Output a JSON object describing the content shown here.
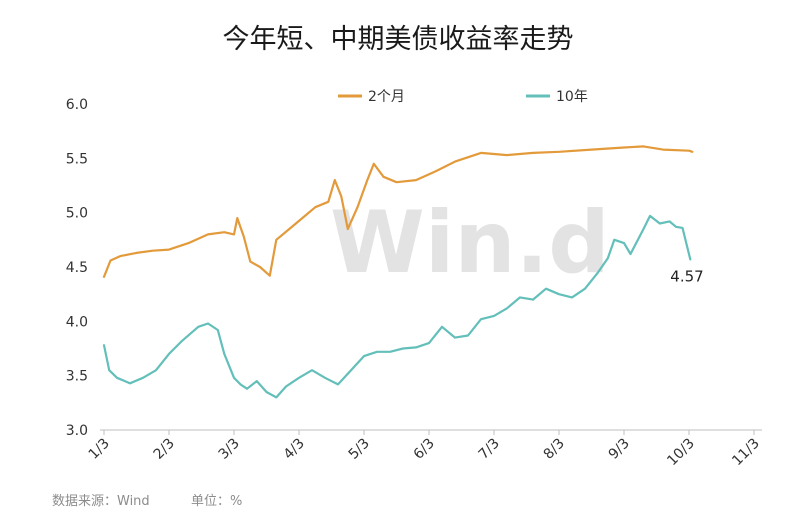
{
  "chart_data": {
    "type": "line",
    "title": "今年短、中期美债收益率走势",
    "xlabel": "",
    "ylabel": "",
    "ylim": [
      3.0,
      6.0
    ],
    "yticks": [
      "6.0",
      "5.5",
      "5.0",
      "4.5",
      "4.0",
      "3.5",
      "3.0"
    ],
    "xticks": [
      "1/3",
      "2/3",
      "3/3",
      "4/3",
      "5/3",
      "6/3",
      "7/3",
      "8/3",
      "9/3",
      "10/3",
      "11/3"
    ],
    "grid": false,
    "legend": "top-center",
    "x_domain": [
      1,
      11
    ],
    "series": [
      {
        "name": "2个月",
        "color": "#e39a3b",
        "points": [
          [
            1.0,
            4.41
          ],
          [
            1.1,
            4.56
          ],
          [
            1.25,
            4.6
          ],
          [
            1.5,
            4.63
          ],
          [
            1.75,
            4.65
          ],
          [
            2.0,
            4.66
          ],
          [
            2.3,
            4.72
          ],
          [
            2.6,
            4.8
          ],
          [
            2.85,
            4.82
          ],
          [
            3.0,
            4.8
          ],
          [
            3.05,
            4.95
          ],
          [
            3.15,
            4.78
          ],
          [
            3.25,
            4.55
          ],
          [
            3.4,
            4.5
          ],
          [
            3.55,
            4.42
          ],
          [
            3.65,
            4.75
          ],
          [
            3.85,
            4.85
          ],
          [
            4.05,
            4.95
          ],
          [
            4.25,
            5.05
          ],
          [
            4.45,
            5.1
          ],
          [
            4.55,
            5.3
          ],
          [
            4.65,
            5.15
          ],
          [
            4.75,
            4.85
          ],
          [
            4.9,
            5.05
          ],
          [
            5.05,
            5.3
          ],
          [
            5.15,
            5.45
          ],
          [
            5.3,
            5.33
          ],
          [
            5.5,
            5.28
          ],
          [
            5.8,
            5.3
          ],
          [
            6.1,
            5.38
          ],
          [
            6.4,
            5.47
          ],
          [
            6.8,
            5.55
          ],
          [
            7.2,
            5.53
          ],
          [
            7.6,
            5.55
          ],
          [
            8.0,
            5.56
          ],
          [
            8.5,
            5.58
          ],
          [
            9.0,
            5.6
          ],
          [
            9.3,
            5.61
          ],
          [
            9.6,
            5.58
          ],
          [
            10.0,
            5.57
          ],
          [
            10.05,
            5.56
          ]
        ]
      },
      {
        "name": "10年",
        "color": "#63bfb9",
        "points": [
          [
            1.0,
            3.78
          ],
          [
            1.08,
            3.55
          ],
          [
            1.2,
            3.48
          ],
          [
            1.4,
            3.43
          ],
          [
            1.6,
            3.48
          ],
          [
            1.8,
            3.55
          ],
          [
            2.0,
            3.7
          ],
          [
            2.2,
            3.82
          ],
          [
            2.45,
            3.95
          ],
          [
            2.6,
            3.98
          ],
          [
            2.75,
            3.92
          ],
          [
            2.85,
            3.7
          ],
          [
            3.0,
            3.48
          ],
          [
            3.1,
            3.42
          ],
          [
            3.2,
            3.38
          ],
          [
            3.35,
            3.45
          ],
          [
            3.5,
            3.35
          ],
          [
            3.65,
            3.3
          ],
          [
            3.8,
            3.4
          ],
          [
            4.0,
            3.48
          ],
          [
            4.2,
            3.55
          ],
          [
            4.4,
            3.48
          ],
          [
            4.6,
            3.42
          ],
          [
            4.8,
            3.55
          ],
          [
            5.0,
            3.68
          ],
          [
            5.2,
            3.72
          ],
          [
            5.4,
            3.72
          ],
          [
            5.6,
            3.75
          ],
          [
            5.8,
            3.76
          ],
          [
            6.0,
            3.8
          ],
          [
            6.2,
            3.95
          ],
          [
            6.4,
            3.85
          ],
          [
            6.6,
            3.87
          ],
          [
            6.8,
            4.02
          ],
          [
            7.0,
            4.05
          ],
          [
            7.2,
            4.12
          ],
          [
            7.4,
            4.22
          ],
          [
            7.6,
            4.2
          ],
          [
            7.8,
            4.3
          ],
          [
            8.0,
            4.25
          ],
          [
            8.2,
            4.22
          ],
          [
            8.4,
            4.3
          ],
          [
            8.6,
            4.45
          ],
          [
            8.75,
            4.58
          ],
          [
            8.85,
            4.75
          ],
          [
            9.0,
            4.72
          ],
          [
            9.1,
            4.62
          ],
          [
            9.3,
            4.85
          ],
          [
            9.4,
            4.97
          ],
          [
            9.55,
            4.9
          ],
          [
            9.7,
            4.92
          ],
          [
            9.8,
            4.87
          ],
          [
            9.9,
            4.86
          ],
          [
            10.02,
            4.57
          ]
        ]
      }
    ],
    "annotations": [
      {
        "text": "4.57",
        "x": 10.02,
        "y": 4.57
      }
    ],
    "watermark": "Win.d",
    "source": "数据来源：Wind",
    "unit": "单位：%"
  }
}
